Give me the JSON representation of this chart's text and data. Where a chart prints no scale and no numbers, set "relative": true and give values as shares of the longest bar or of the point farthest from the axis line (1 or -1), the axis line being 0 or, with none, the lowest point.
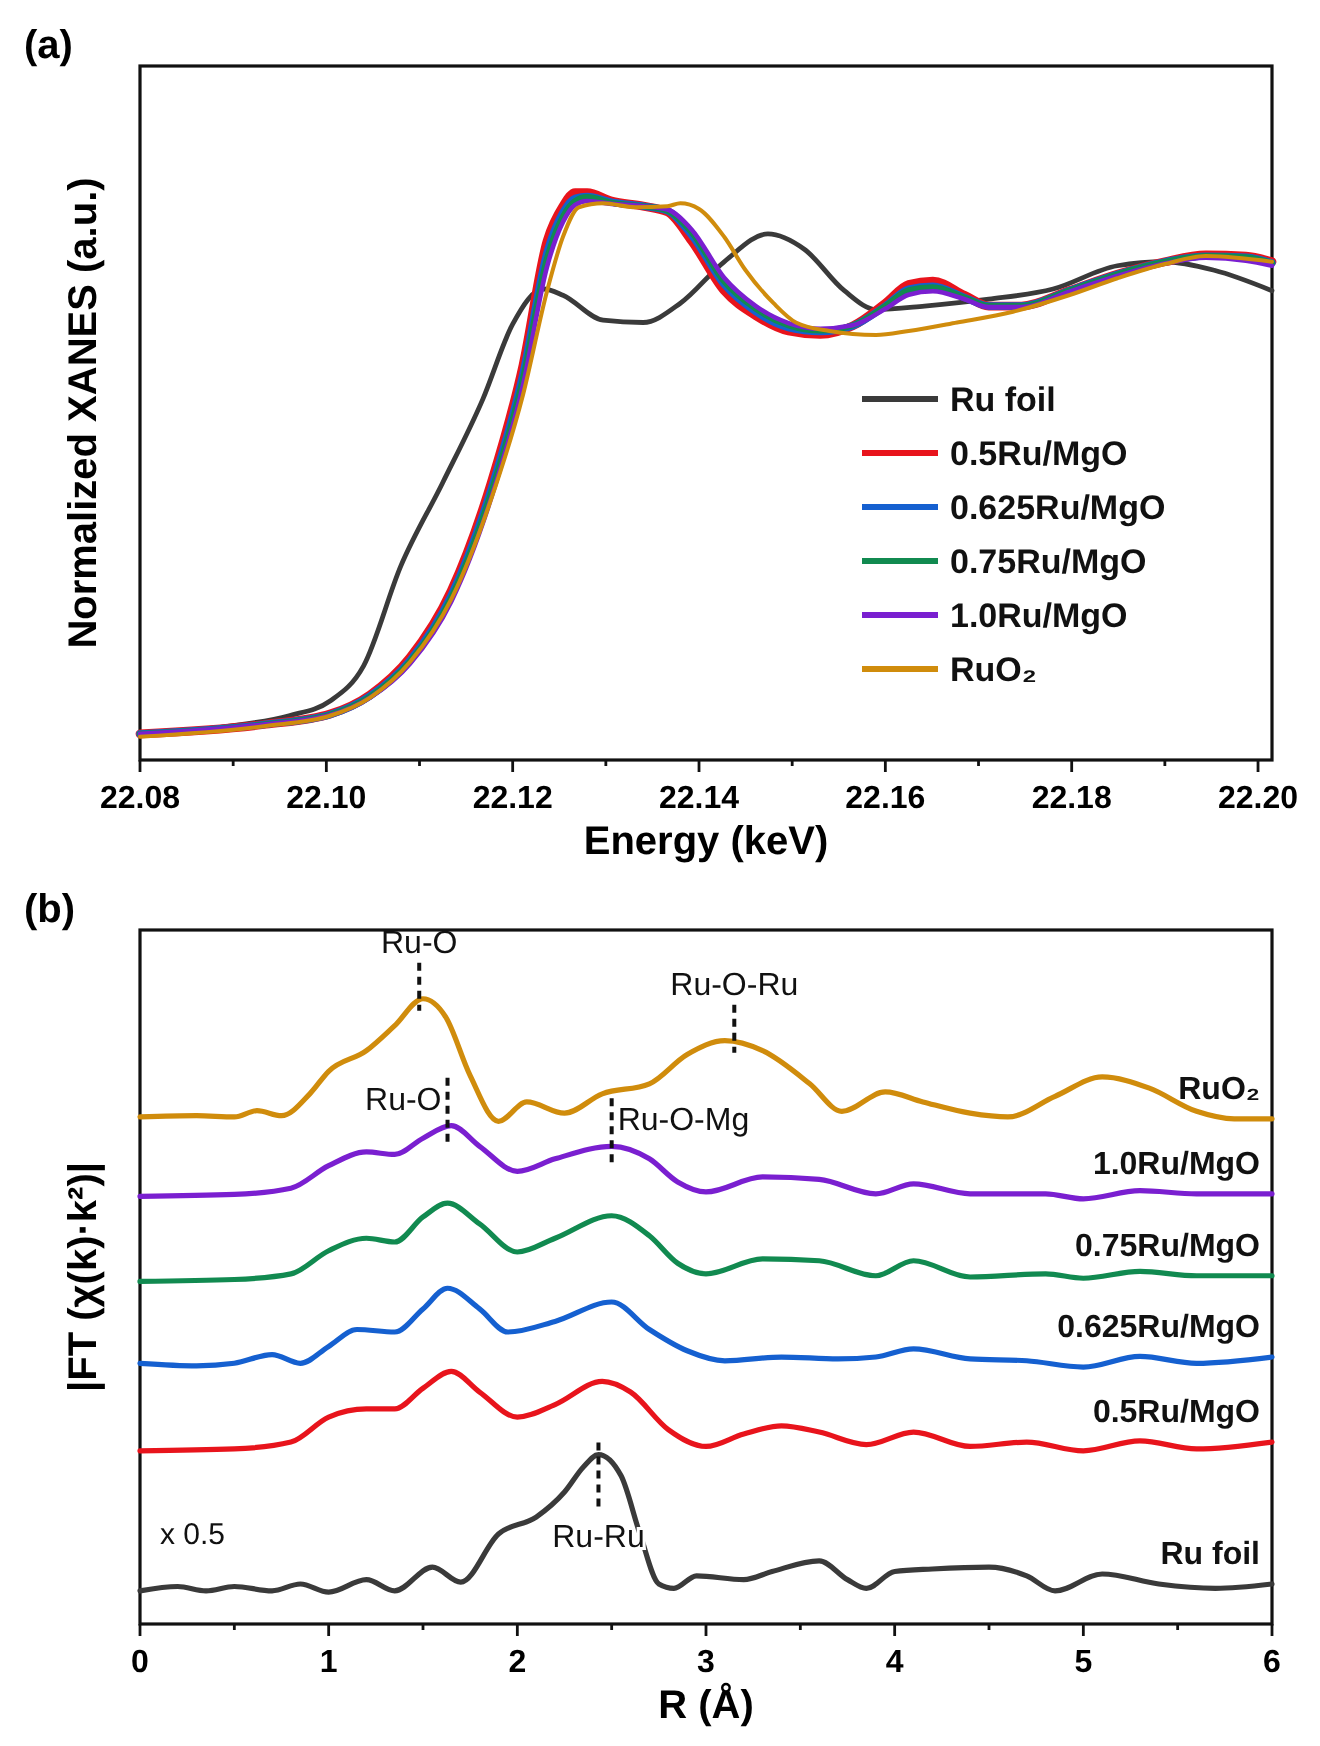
{
  "chart_data": [
    {
      "type": "line",
      "title": "(a)",
      "xlabel": "Energy (keV)",
      "ylabel": "Normalized XANES (a.u.)",
      "relative": true,
      "legend": "right",
      "xlim": [
        22.08,
        22.2015
      ],
      "xticks": [
        22.08,
        {
          "value": 22.09,
          "label": null
        },
        "22.10",
        {
          "value": 22.11,
          "label": null
        },
        22.12,
        {
          "value": 22.13,
          "label": null
        },
        22.14,
        {
          "value": 22.15,
          "label": null
        },
        22.16,
        {
          "value": 22.17,
          "label": null
        },
        22.18,
        {
          "value": 22.19,
          "label": null
        },
        "22.20"
      ],
      "series": [
        {
          "name": "Ru foil",
          "color": "#3a3a3a",
          "x": [
            22.08,
            22.0892,
            22.096,
            22.1004,
            22.104,
            22.108,
            22.1125,
            22.1168,
            22.12,
            22.1233,
            22.1254,
            22.1297,
            22.134,
            22.138,
            22.1427,
            22.1474,
            22.1513,
            22.1556,
            22.159,
            22.1642,
            22.1711,
            22.178,
            22.1849,
            22.19,
            22.1953,
            22.2015
          ],
          "values": [
            0.048,
            0.059,
            0.078,
            0.104,
            0.166,
            0.342,
            0.489,
            0.636,
            0.768,
            0.83,
            0.819,
            0.775,
            0.771,
            0.805,
            0.878,
            0.927,
            0.9,
            0.827,
            0.794,
            0.8,
            0.812,
            0.83,
            0.871,
            0.878,
            0.863,
            0.827
          ]
        },
        {
          "name": "0.5Ru/MgO",
          "color": "#e8141c",
          "x": [
            22.08,
            22.0935,
            22.1004,
            22.1047,
            22.109,
            22.1134,
            22.1177,
            22.1211,
            22.1237,
            22.1254,
            22.1267,
            22.128,
            22.1306,
            22.134,
            22.1366,
            22.1392,
            22.1427,
            22.1461,
            22.1496,
            22.153,
            22.1565,
            22.16,
            22.1625,
            22.1651,
            22.1685,
            22.1711,
            22.1746,
            22.1797,
            22.1849,
            22.19,
            22.1944,
            22.1987,
            22.2015
          ],
          "values": [
            0.046,
            0.063,
            0.081,
            0.115,
            0.181,
            0.298,
            0.489,
            0.695,
            0.915,
            0.976,
            1,
            1,
            0.985,
            0.976,
            0.966,
            0.915,
            0.827,
            0.783,
            0.756,
            0.75,
            0.765,
            0.805,
            0.838,
            0.844,
            0.819,
            0.8,
            0.8,
            0.827,
            0.856,
            0.878,
            0.89,
            0.888,
            0.878
          ]
        },
        {
          "name": "0.625Ru/MgO",
          "color": "#1560d0",
          "x": [
            22.08,
            22.0935,
            22.1004,
            22.1047,
            22.109,
            22.1134,
            22.1177,
            22.1211,
            22.1237,
            22.1254,
            22.1267,
            22.128,
            22.1306,
            22.134,
            22.1366,
            22.1392,
            22.1427,
            22.1461,
            22.1496,
            22.153,
            22.1565,
            22.16,
            22.1625,
            22.1651,
            22.1685,
            22.1711,
            22.1746,
            22.1797,
            22.1849,
            22.19,
            22.1944,
            22.1987,
            22.2015
          ],
          "values": [
            0.046,
            0.063,
            0.08,
            0.113,
            0.176,
            0.29,
            0.478,
            0.68,
            0.895,
            0.965,
            0.99,
            0.993,
            0.983,
            0.976,
            0.968,
            0.925,
            0.838,
            0.79,
            0.762,
            0.755,
            0.765,
            0.8,
            0.83,
            0.835,
            0.815,
            0.8,
            0.8,
            0.827,
            0.856,
            0.878,
            0.888,
            0.886,
            0.876
          ]
        },
        {
          "name": "0.75Ru/MgO",
          "color": "#118a50",
          "x": [
            22.08,
            22.0935,
            22.1004,
            22.1047,
            22.109,
            22.1134,
            22.1177,
            22.1211,
            22.1237,
            22.1254,
            22.1267,
            22.128,
            22.1306,
            22.134,
            22.1366,
            22.1392,
            22.1427,
            22.1461,
            22.1496,
            22.153,
            22.1565,
            22.16,
            22.1625,
            22.1651,
            22.1685,
            22.1711,
            22.1746,
            22.1797,
            22.1849,
            22.19,
            22.1944,
            22.1987,
            22.2015
          ],
          "values": [
            0.046,
            0.063,
            0.08,
            0.112,
            0.174,
            0.286,
            0.472,
            0.672,
            0.885,
            0.958,
            0.985,
            0.992,
            0.982,
            0.976,
            0.968,
            0.93,
            0.843,
            0.795,
            0.766,
            0.757,
            0.766,
            0.8,
            0.828,
            0.833,
            0.815,
            0.8,
            0.8,
            0.827,
            0.856,
            0.878,
            0.888,
            0.886,
            0.876
          ]
        },
        {
          "name": "1.0Ru/MgO",
          "color": "#7a1fd0",
          "x": [
            22.08,
            22.0935,
            22.1004,
            22.1047,
            22.109,
            22.1134,
            22.1177,
            22.1211,
            22.1237,
            22.1254,
            22.1267,
            22.128,
            22.1306,
            22.134,
            22.1366,
            22.1392,
            22.1427,
            22.1461,
            22.1496,
            22.153,
            22.1565,
            22.16,
            22.1625,
            22.1651,
            22.1685,
            22.1711,
            22.1746,
            22.1797,
            22.1849,
            22.19,
            22.1944,
            22.1987,
            22.2015
          ],
          "values": [
            0.046,
            0.063,
            0.079,
            0.11,
            0.17,
            0.279,
            0.462,
            0.66,
            0.87,
            0.948,
            0.978,
            0.985,
            0.98,
            0.976,
            0.97,
            0.935,
            0.85,
            0.8,
            0.77,
            0.76,
            0.766,
            0.795,
            0.82,
            0.826,
            0.812,
            0.798,
            0.798,
            0.825,
            0.853,
            0.875,
            0.885,
            0.88,
            0.871
          ]
        },
        {
          "name": "RuO₂",
          "color": "#d08c0c",
          "x": [
            22.08,
            22.0935,
            22.1004,
            22.1047,
            22.109,
            22.1134,
            22.1177,
            22.1211,
            22.1237,
            22.1254,
            22.1271,
            22.1297,
            22.1332,
            22.1366,
            22.138,
            22.14,
            22.1427,
            22.145,
            22.148,
            22.1504,
            22.154,
            22.159,
            22.1625,
            22.1677,
            22.1737,
            22.1797,
            22.1849,
            22.19,
            22.1944,
            22.2015
          ],
          "values": [
            0.041,
            0.06,
            0.078,
            0.11,
            0.173,
            0.283,
            0.46,
            0.643,
            0.827,
            0.922,
            0.974,
            0.981,
            0.974,
            0.976,
            0.981,
            0.971,
            0.922,
            0.863,
            0.805,
            0.771,
            0.756,
            0.749,
            0.756,
            0.771,
            0.79,
            0.819,
            0.849,
            0.874,
            0.888,
            0.878
          ]
        }
      ]
    },
    {
      "type": "line",
      "title": "(b)",
      "xlabel": "R (Å)",
      "ylabel": "|FT (χ(k)·k²)|",
      "relative": true,
      "xlim": [
        0,
        6
      ],
      "xticks": [
        0,
        {
          "value": 0.5,
          "label": null
        },
        1,
        {
          "value": 1.5,
          "label": null
        },
        2,
        {
          "value": 2.5,
          "label": null
        },
        3,
        {
          "value": 3.5,
          "label": null
        },
        4,
        {
          "value": 4.5,
          "label": null
        },
        5,
        {
          "value": 5.5,
          "label": null
        },
        6
      ],
      "annotations": [
        {
          "text": "Ru-O",
          "x": 1.48,
          "y": 1.0
        },
        {
          "text": "Ru-O-Ru",
          "x": 3.15,
          "y": 0.933
        },
        {
          "text": "Ru-O",
          "x": 1.63,
          "y": 0.797
        },
        {
          "text": "Ru-O-Mg",
          "x": 2.5,
          "y": 0.764
        },
        {
          "text": "Ru-Ru",
          "x": 2.43,
          "y": 0.271
        },
        "x 0.5"
      ],
      "series": [
        {
          "name": "Ru foil",
          "color": "#3a3a3a",
          "x": [
            0,
            0.2,
            0.35,
            0.5,
            0.7,
            0.85,
            1.0,
            1.2,
            1.35,
            1.55,
            1.7,
            1.9,
            2.1,
            2.25,
            2.35,
            2.43,
            2.55,
            2.65,
            2.75,
            2.83,
            2.95,
            3.2,
            3.35,
            3.6,
            3.75,
            3.85,
            4.0,
            4.2,
            4.5,
            4.7,
            4.85,
            5.1,
            5.4,
            5.7,
            6.0
          ],
          "values": [
            0.053,
            0.06,
            0.053,
            0.06,
            0.053,
            0.064,
            0.051,
            0.071,
            0.053,
            0.091,
            0.067,
            0.144,
            0.171,
            0.211,
            0.251,
            0.271,
            0.237,
            0.144,
            0.064,
            0.057,
            0.077,
            0.071,
            0.084,
            0.101,
            0.071,
            0.057,
            0.084,
            0.088,
            0.091,
            0.077,
            0.053,
            0.08,
            0.064,
            0.057,
            0.064
          ]
        },
        {
          "name": "0.5Ru/MgO",
          "color": "#e8141c",
          "x": [
            0,
            0.5,
            0.8,
            1.0,
            1.2,
            1.35,
            1.5,
            1.65,
            1.8,
            2.0,
            2.2,
            2.45,
            2.6,
            2.8,
            3.0,
            3.2,
            3.4,
            3.6,
            3.85,
            4.1,
            4.4,
            4.7,
            5.0,
            5.3,
            5.6,
            6.0
          ],
          "values": [
            0.277,
            0.28,
            0.291,
            0.331,
            0.344,
            0.344,
            0.377,
            0.404,
            0.371,
            0.331,
            0.351,
            0.388,
            0.371,
            0.311,
            0.284,
            0.304,
            0.317,
            0.307,
            0.287,
            0.307,
            0.284,
            0.291,
            0.277,
            0.293,
            0.28,
            0.291
          ]
        },
        {
          "name": "0.625Ru/MgO",
          "color": "#1560d0",
          "x": [
            0,
            0.3,
            0.5,
            0.7,
            0.85,
            1.0,
            1.15,
            1.35,
            1.5,
            1.63,
            1.8,
            1.95,
            2.2,
            2.5,
            2.7,
            2.9,
            3.1,
            3.4,
            3.7,
            3.9,
            4.1,
            4.4,
            4.7,
            5.0,
            5.3,
            5.6,
            6.0
          ],
          "values": [
            0.417,
            0.413,
            0.417,
            0.431,
            0.417,
            0.444,
            0.471,
            0.467,
            0.504,
            0.537,
            0.504,
            0.467,
            0.484,
            0.515,
            0.471,
            0.437,
            0.421,
            0.427,
            0.424,
            0.427,
            0.44,
            0.424,
            0.421,
            0.411,
            0.428,
            0.417,
            0.427
          ]
        },
        {
          "name": "0.75Ru/MgO",
          "color": "#118a50",
          "x": [
            0,
            0.5,
            0.8,
            1.0,
            1.2,
            1.35,
            1.5,
            1.63,
            1.8,
            2.0,
            2.2,
            2.5,
            2.7,
            2.85,
            3.0,
            3.3,
            3.6,
            3.9,
            4.1,
            4.4,
            4.8,
            5.0,
            5.3,
            5.6,
            6.0
          ],
          "values": [
            0.548,
            0.551,
            0.56,
            0.597,
            0.617,
            0.611,
            0.651,
            0.673,
            0.64,
            0.595,
            0.617,
            0.653,
            0.621,
            0.577,
            0.56,
            0.584,
            0.581,
            0.557,
            0.581,
            0.555,
            0.56,
            0.553,
            0.564,
            0.557,
            0.557
          ]
        },
        {
          "name": "1.0Ru/MgO",
          "color": "#7a1fd0",
          "x": [
            0,
            0.5,
            0.8,
            1.0,
            1.2,
            1.35,
            1.5,
            1.65,
            1.8,
            2.0,
            2.2,
            2.5,
            2.7,
            2.85,
            3.0,
            3.3,
            3.6,
            3.9,
            4.1,
            4.4,
            4.8,
            5.0,
            5.3,
            5.6,
            6.0
          ],
          "values": [
            0.684,
            0.687,
            0.697,
            0.733,
            0.755,
            0.751,
            0.777,
            0.797,
            0.764,
            0.724,
            0.744,
            0.764,
            0.744,
            0.707,
            0.691,
            0.715,
            0.711,
            0.688,
            0.704,
            0.688,
            0.688,
            0.68,
            0.693,
            0.688,
            0.688
          ]
        },
        {
          "name": "RuO₂",
          "color": "#d08c0c",
          "x": [
            0,
            0.3,
            0.5,
            0.62,
            0.75,
            0.9,
            1.0,
            1.2,
            1.35,
            1.5,
            1.62,
            1.75,
            1.9,
            2.05,
            2.25,
            2.45,
            2.7,
            2.9,
            3.1,
            3.3,
            3.55,
            3.72,
            3.95,
            4.15,
            4.4,
            4.6,
            4.85,
            5.1,
            5.35,
            5.6,
            5.8,
            6.0
          ],
          "values": [
            0.811,
            0.813,
            0.811,
            0.821,
            0.813,
            0.848,
            0.884,
            0.917,
            0.957,
            1,
            0.971,
            0.877,
            0.804,
            0.835,
            0.817,
            0.848,
            0.864,
            0.911,
            0.933,
            0.917,
            0.864,
            0.82,
            0.851,
            0.835,
            0.817,
            0.811,
            0.844,
            0.875,
            0.857,
            0.82,
            0.808,
            0.808
          ]
        }
      ]
    }
  ]
}
